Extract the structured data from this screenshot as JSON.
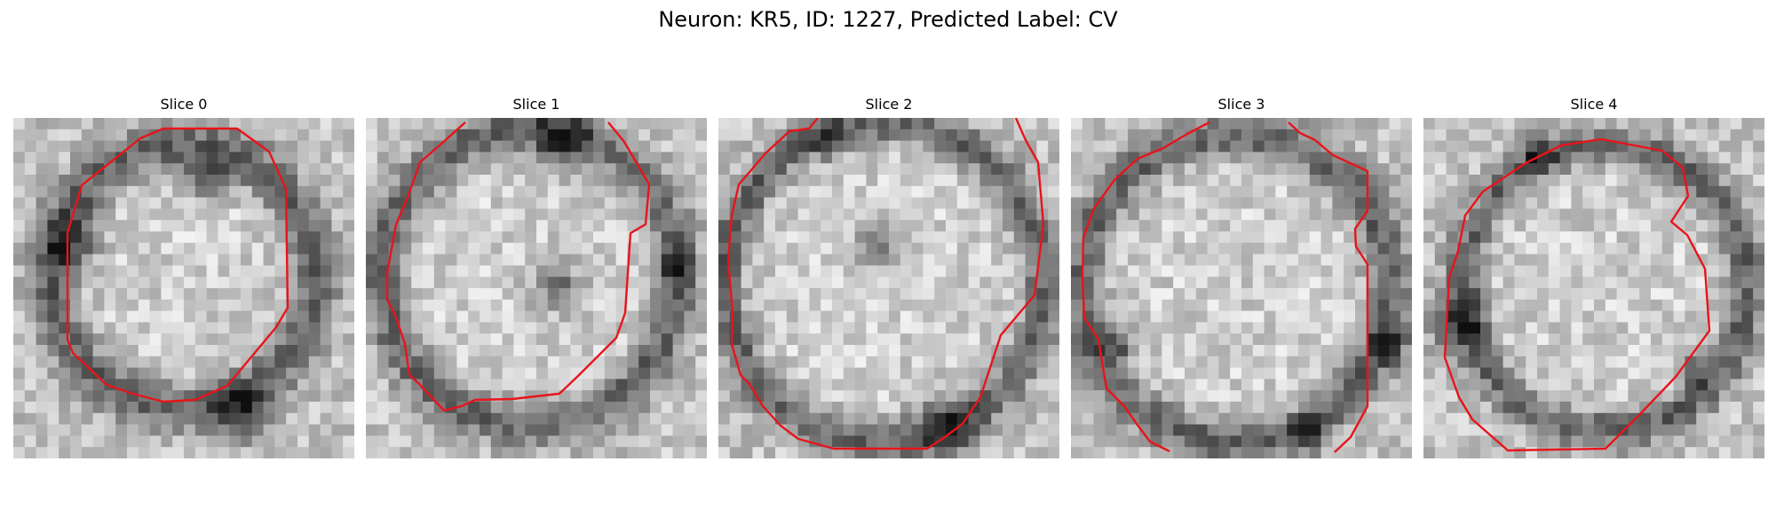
{
  "figure": {
    "title": "Neuron: KR5, ID: 1227, Predicted Label: CV",
    "contour_color": "#e8141a"
  },
  "panels": [
    {
      "title": "Slice 0",
      "image": "grayscale-microscopy-slice",
      "overlay": "red-contour"
    },
    {
      "title": "Slice 1",
      "image": "grayscale-microscopy-slice",
      "overlay": "red-contour"
    },
    {
      "title": "Slice 2",
      "image": "grayscale-microscopy-slice",
      "overlay": "red-contour"
    },
    {
      "title": "Slice 3",
      "image": "grayscale-microscopy-slice",
      "overlay": "red-contour"
    },
    {
      "title": "Slice 4",
      "image": "grayscale-microscopy-slice",
      "overlay": "red-contour"
    }
  ]
}
